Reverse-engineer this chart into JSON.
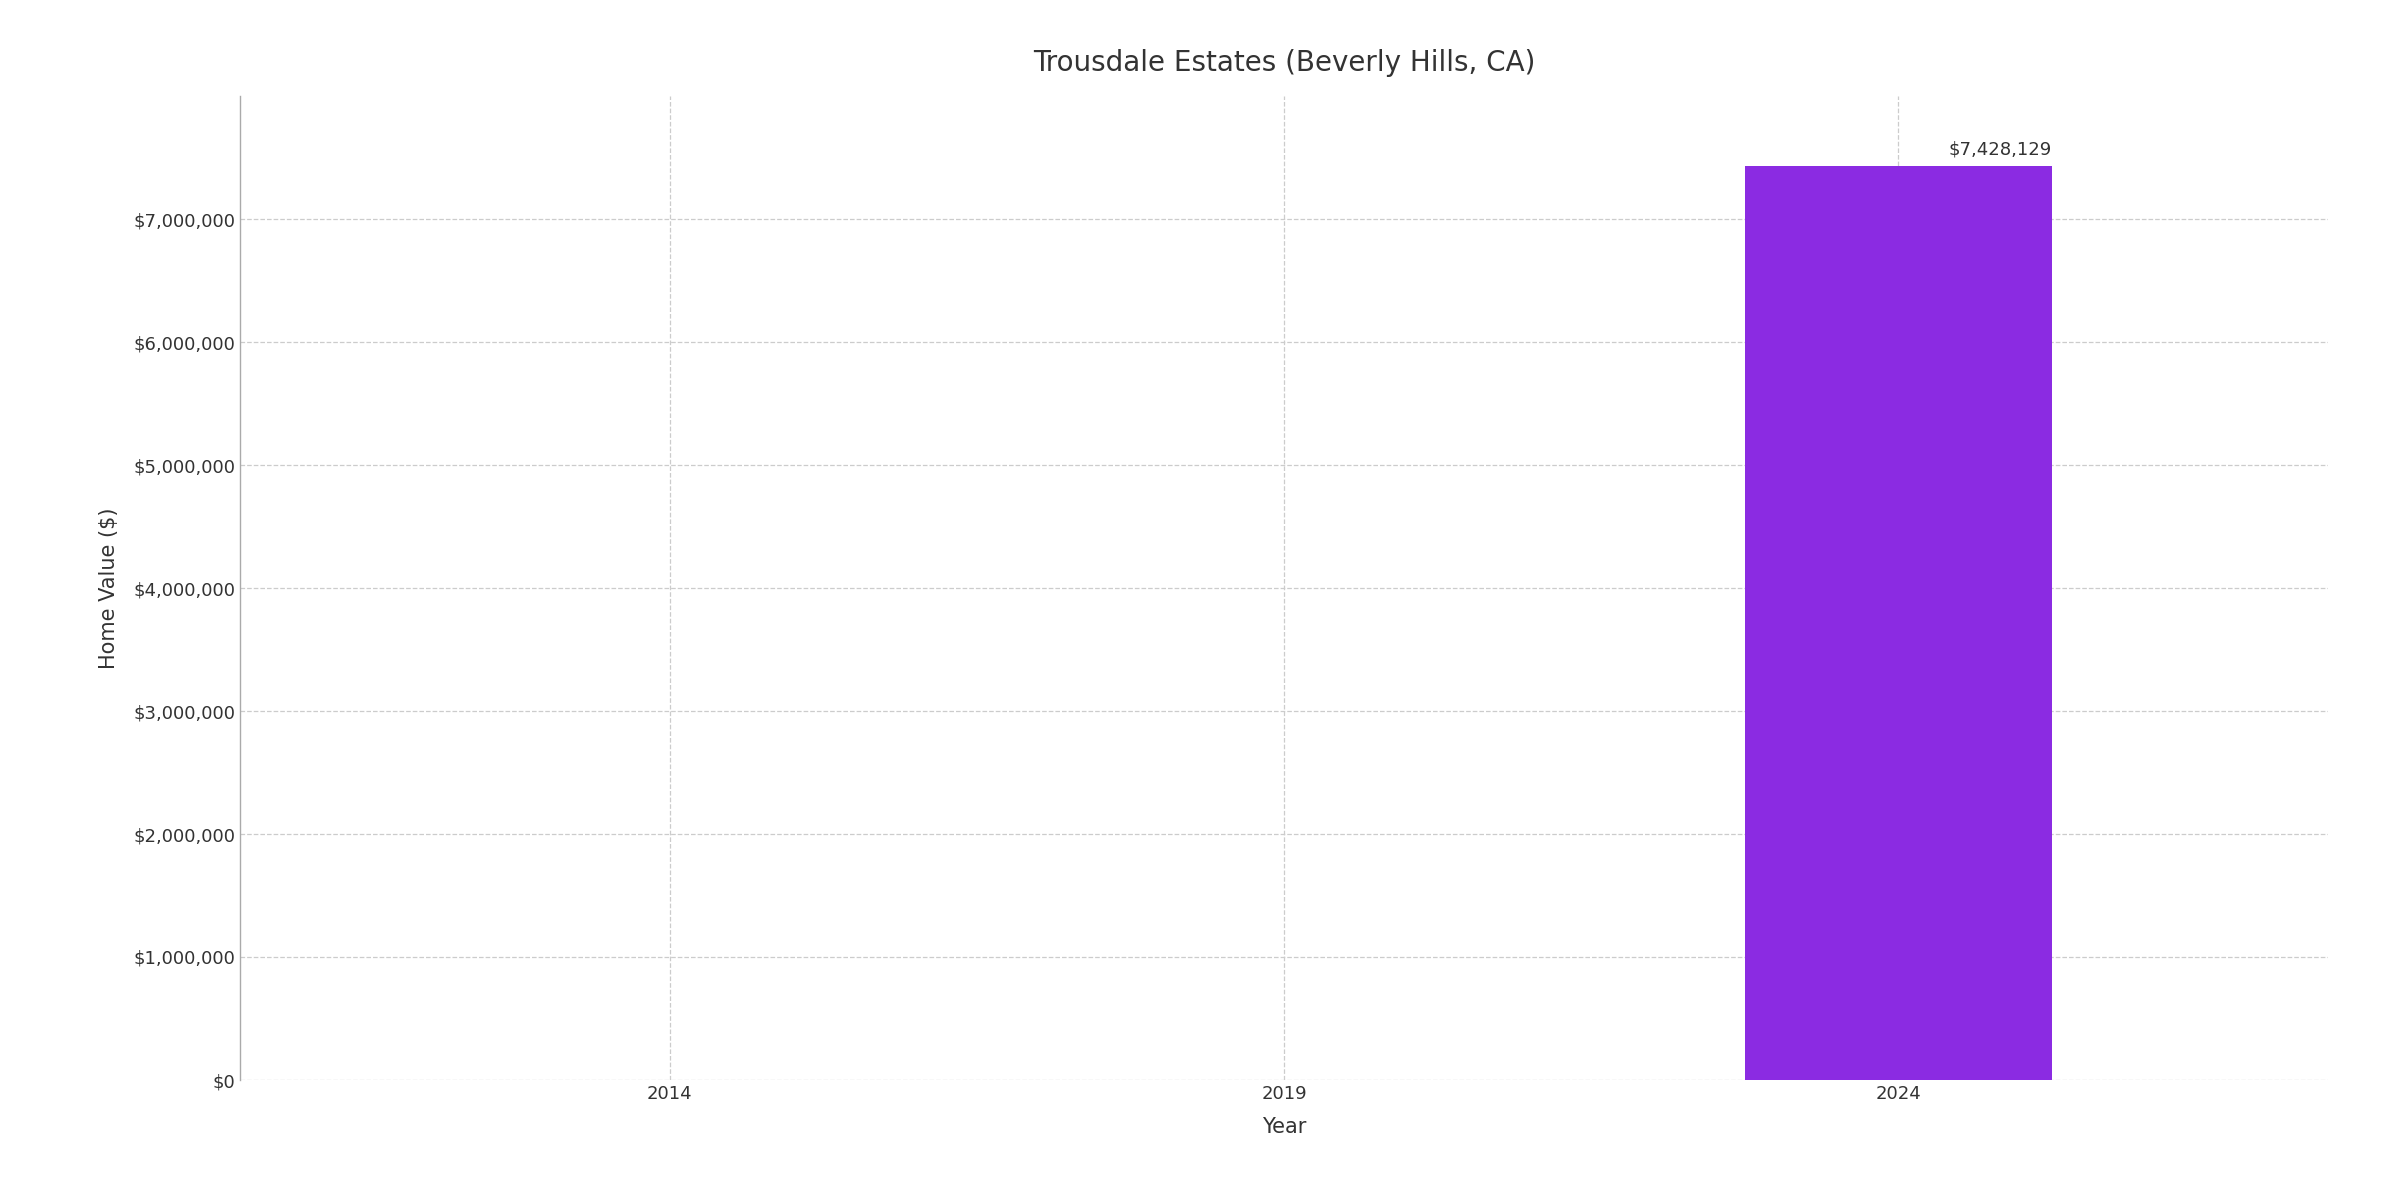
{
  "title": "Trousdale Estates (Beverly Hills, CA)",
  "xlabel": "Year",
  "ylabel": "Home Value ($)",
  "bar_year": 2024,
  "bar_value": 7428129,
  "bar_color": "#8B2BE2",
  "bar_width": 2.5,
  "annotation": "$7,428,129",
  "x_ticks": [
    2014,
    2019,
    2024
  ],
  "xlim": [
    2010.5,
    2027.5
  ],
  "ylim": [
    0,
    8000000
  ],
  "y_ticks": [
    0,
    1000000,
    2000000,
    3000000,
    4000000,
    5000000,
    6000000,
    7000000
  ],
  "y_tick_labels": [
    "$0",
    "$1,000,000",
    "$2,000,000",
    "$3,000,000",
    "$4,000,000",
    "$5,000,000",
    "$6,000,000",
    "$7,000,000"
  ],
  "background_color": "#ffffff",
  "grid_color": "#cccccc",
  "title_fontsize": 20,
  "label_fontsize": 15,
  "tick_fontsize": 13,
  "annotation_fontsize": 13,
  "title_color": "#333333",
  "axis_color": "#333333"
}
